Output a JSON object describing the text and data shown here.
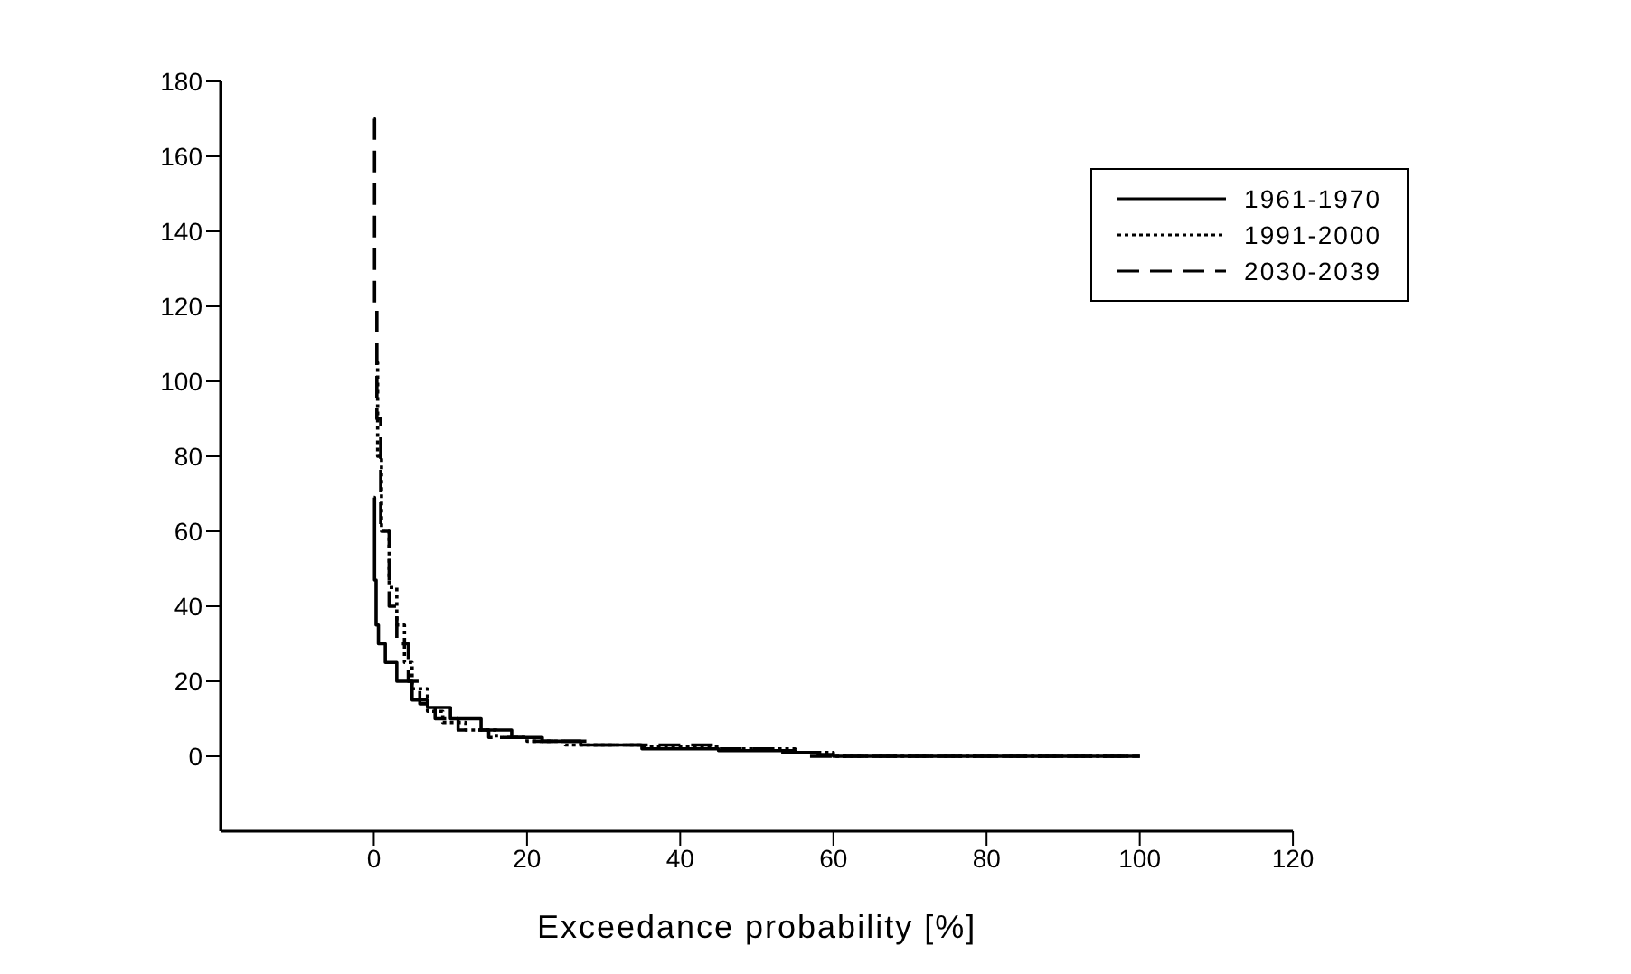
{
  "chart_data": {
    "type": "step",
    "xlabel": "Exceedance probability [%]",
    "xlim": [
      -20,
      120
    ],
    "xticks": [
      0,
      20,
      40,
      60,
      80,
      100,
      120
    ],
    "ylim": [
      -20,
      180
    ],
    "yticks": [
      0,
      20,
      40,
      60,
      80,
      100,
      120,
      140,
      160,
      180
    ],
    "grid": false,
    "legend": "top right",
    "marker": "none",
    "series": [
      {
        "name": "1961-1970",
        "color": "#000000",
        "line_style": "solid",
        "x": [
          0,
          0.1,
          0.3,
          0.6,
          1.5,
          3,
          5,
          7,
          10,
          14,
          18,
          22,
          27,
          35,
          45,
          55,
          58,
          60,
          100
        ],
        "values": [
          69,
          47,
          35,
          30,
          25,
          20,
          15,
          13,
          10,
          7,
          5,
          4,
          3,
          2,
          1.5,
          1,
          0.5,
          0,
          0
        ]
      },
      {
        "name": "1991-2000",
        "color": "#000000",
        "line_style": "dotted",
        "x": [
          0.3,
          0.5,
          1,
          2,
          3,
          4,
          5,
          7,
          9,
          12,
          16,
          20,
          25,
          35,
          45,
          55,
          60,
          100
        ],
        "values": [
          105,
          80,
          60,
          45,
          35,
          25,
          18,
          12,
          9,
          7,
          5,
          4,
          3,
          2.5,
          2,
          1,
          0,
          0
        ]
      },
      {
        "name": "2030-2039",
        "color": "#000000",
        "line_style": "dashed",
        "x": [
          0,
          0.1,
          0.4,
          0.9,
          2,
          3,
          4.5,
          6,
          8,
          11,
          15,
          20,
          28,
          35,
          45,
          52,
          56,
          100
        ],
        "values": [
          170,
          120,
          90,
          60,
          40,
          30,
          20,
          14,
          10,
          7,
          5,
          4,
          3,
          3,
          2,
          1,
          0,
          0
        ]
      }
    ]
  }
}
